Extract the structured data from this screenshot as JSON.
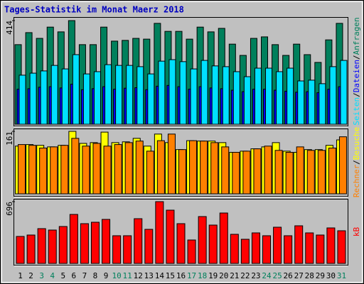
{
  "chart_data": [
    {
      "type": "bar",
      "title": "Tages-Statistik im Monat Maerz 2018",
      "categories": [
        "1",
        "2",
        "3",
        "4",
        "5",
        "6",
        "7",
        "8",
        "9",
        "10",
        "11",
        "12",
        "13",
        "14",
        "15",
        "16",
        "17",
        "18",
        "19",
        "20",
        "21",
        "22",
        "23",
        "24",
        "25",
        "26",
        "27",
        "28",
        "29",
        "30",
        "31"
      ],
      "category_colors": [
        "#000000",
        "#000000",
        "#00805c",
        "#00805c",
        "#000000",
        "#000000",
        "#000000",
        "#000000",
        "#000000",
        "#00805c",
        "#00805c",
        "#000000",
        "#000000",
        "#000000",
        "#000000",
        "#000000",
        "#00805c",
        "#00805c",
        "#000000",
        "#000000",
        "#000000",
        "#000000",
        "#000000",
        "#00805c",
        "#00805c",
        "#000000",
        "#000000",
        "#000000",
        "#000000",
        "#000000",
        "#00805c"
      ],
      "legend_separator": "/",
      "ylim": [
        0,
        414
      ],
      "yticks": [
        414
      ],
      "series": [
        {
          "name": "Anfragen",
          "color": "#00805c",
          "values": [
            318,
            366,
            343,
            388,
            369,
            414,
            318,
            318,
            388,
            332,
            335,
            343,
            340,
            403,
            371,
            371,
            340,
            388,
            369,
            383,
            320,
            275,
            343,
            349,
            318,
            275,
            320,
            278,
            247,
            337,
            403
          ]
        },
        {
          "name": "Dateien",
          "color": "#0000ff",
          "values": [
            140,
            142,
            148,
            150,
            145,
            160,
            138,
            142,
            150,
            140,
            144,
            146,
            138,
            152,
            155,
            150,
            140,
            150,
            145,
            142,
            136,
            130,
            140,
            140,
            136,
            132,
            128,
            130,
            126,
            140,
            150
          ]
        },
        {
          "name": "Seiten",
          "color": "#00e0ff",
          "values": [
            196,
            204,
            213,
            235,
            221,
            278,
            201,
            210,
            238,
            235,
            235,
            230,
            201,
            252,
            258,
            250,
            221,
            255,
            233,
            230,
            210,
            190,
            224,
            224,
            210,
            224,
            173,
            176,
            162,
            230,
            255
          ]
        }
      ]
    },
    {
      "type": "bar",
      "ylim": [
        0,
        161
      ],
      "yticks": [
        161
      ],
      "series": [
        {
          "name": "Besuche",
          "color": "#ffff00",
          "values": [
            123,
            127,
            125,
            121,
            125,
            161,
            130,
            132,
            159,
            132,
            134,
            143,
            123,
            154,
            132,
            114,
            137,
            136,
            136,
            132,
            107,
            110,
            116,
            121,
            132,
            110,
            107,
            114,
            114,
            125,
            139
          ]
        },
        {
          "name": "Rechner",
          "color": "#ff8000",
          "values": [
            127,
            125,
            118,
            121,
            125,
            143,
            123,
            130,
            123,
            127,
            132,
            136,
            110,
            137,
            154,
            114,
            137,
            136,
            132,
            121,
            107,
            110,
            116,
            123,
            112,
            107,
            121,
            112,
            112,
            118,
            147
          ]
        }
      ]
    },
    {
      "type": "bar",
      "ylim": [
        0,
        696
      ],
      "yticks": [
        696
      ],
      "series": [
        {
          "name": "kB",
          "color": "#ff0000",
          "values": [
            304,
            320,
            392,
            376,
            416,
            552,
            448,
            464,
            496,
            312,
            312,
            504,
            384,
            696,
            600,
            448,
            264,
            528,
            432,
            568,
            328,
            272,
            344,
            312,
            408,
            312,
            424,
            344,
            320,
            400,
            368
          ]
        }
      ]
    }
  ]
}
